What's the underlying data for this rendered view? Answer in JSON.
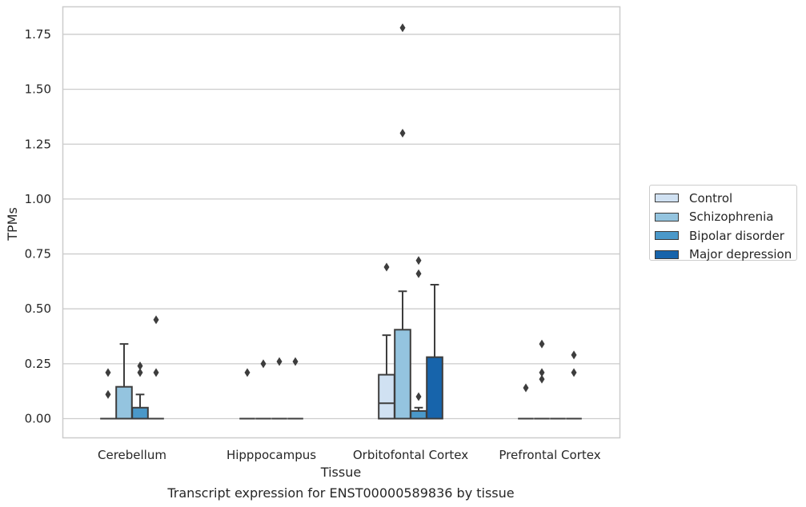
{
  "chart_data": {
    "type": "box",
    "title": "Transcript expression for ENST00000589836 by tissue",
    "xlabel": "Tissue",
    "ylabel": "TPMs",
    "ylim": [
      -0.085,
      1.88
    ],
    "yticks": [
      "0.00",
      "0.25",
      "0.50",
      "0.75",
      "1.00",
      "1.25",
      "1.50",
      "1.75"
    ],
    "categories": [
      "Cerebellum",
      "Hipppocampus",
      "Orbitofontal Cortex",
      "Prefrontal Cortex"
    ],
    "grid": true,
    "legend_position": "right",
    "series": [
      {
        "name": "Control",
        "color": "#d0e1f2",
        "boxes": [
          {
            "q1": 0,
            "median": 0,
            "q3": 0,
            "whisker_low": 0,
            "whisker_high": 0,
            "outliers": [
              0.21,
              0.11
            ]
          },
          {
            "q1": 0,
            "median": 0,
            "q3": 0,
            "whisker_low": 0,
            "whisker_high": 0,
            "outliers": [
              0.21
            ]
          },
          {
            "q1": 0,
            "median": 0.07,
            "q3": 0.2,
            "whisker_low": 0,
            "whisker_high": 0.38,
            "outliers": [
              0.69
            ]
          },
          {
            "q1": 0,
            "median": 0,
            "q3": 0,
            "whisker_low": 0,
            "whisker_high": 0,
            "outliers": [
              0.14
            ]
          }
        ]
      },
      {
        "name": "Schizophrenia",
        "color": "#94c4df",
        "boxes": [
          {
            "q1": 0,
            "median": 0,
            "q3": 0.145,
            "whisker_low": 0,
            "whisker_high": 0.34,
            "outliers": []
          },
          {
            "q1": 0,
            "median": 0,
            "q3": 0,
            "whisker_low": 0,
            "whisker_high": 0,
            "outliers": [
              0.25
            ]
          },
          {
            "q1": 0,
            "median": 0,
            "q3": 0.405,
            "whisker_low": 0,
            "whisker_high": 0.58,
            "outliers": [
              1.78,
              1.3
            ]
          },
          {
            "q1": 0,
            "median": 0,
            "q3": 0,
            "whisker_low": 0,
            "whisker_high": 0,
            "outliers": [
              0.34,
              0.21,
              0.18
            ]
          }
        ]
      },
      {
        "name": "Bipolar disorder",
        "color": "#4a98c9",
        "boxes": [
          {
            "q1": 0,
            "median": 0,
            "q3": 0.05,
            "whisker_low": 0,
            "whisker_high": 0.11,
            "outliers": [
              0.24,
              0.21
            ]
          },
          {
            "q1": 0,
            "median": 0,
            "q3": 0,
            "whisker_low": 0,
            "whisker_high": 0,
            "outliers": [
              0.26
            ]
          },
          {
            "q1": 0,
            "median": 0,
            "q3": 0.035,
            "whisker_low": 0,
            "whisker_high": 0.05,
            "outliers": [
              0.72,
              0.66,
              0.1
            ]
          },
          {
            "q1": 0,
            "median": 0,
            "q3": 0,
            "whisker_low": 0,
            "whisker_high": 0,
            "outliers": []
          }
        ]
      },
      {
        "name": "Major depression",
        "color": "#1764ab",
        "boxes": [
          {
            "q1": 0,
            "median": 0,
            "q3": 0,
            "whisker_low": 0,
            "whisker_high": 0,
            "outliers": [
              0.45,
              0.21
            ]
          },
          {
            "q1": 0,
            "median": 0,
            "q3": 0,
            "whisker_low": 0,
            "whisker_high": 0,
            "outliers": [
              0.26
            ]
          },
          {
            "q1": 0,
            "median": 0,
            "q3": 0.28,
            "whisker_low": 0,
            "whisker_high": 0.61,
            "outliers": []
          },
          {
            "q1": 0,
            "median": 0,
            "q3": 0,
            "whisker_low": 0,
            "whisker_high": 0,
            "outliers": [
              0.29,
              0.21
            ]
          }
        ]
      }
    ]
  }
}
